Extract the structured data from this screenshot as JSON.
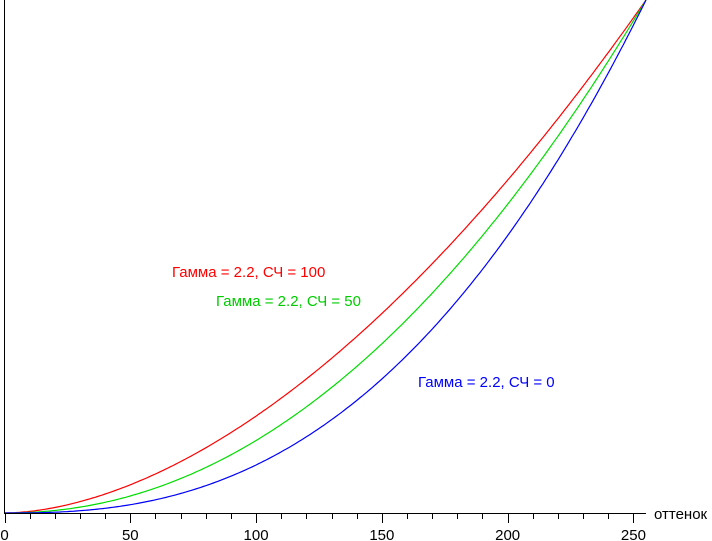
{
  "chart_data": {
    "type": "line",
    "title": "",
    "xlabel": "оттенок",
    "ylabel": "",
    "xlim": [
      0,
      255
    ],
    "ylim": [
      0,
      1
    ],
    "xticks": [
      0,
      50,
      100,
      150,
      200,
      250
    ],
    "minor_tick_step": 10,
    "grid": false,
    "series": [
      {
        "name": "Гамма = 2.2, СЧ = 100",
        "color": "#ff0000",
        "gamma_fit": 1.78,
        "samples": [
          [
            0,
            0
          ],
          [
            50,
            0.05
          ],
          [
            100,
            0.19
          ],
          [
            150,
            0.39
          ],
          [
            200,
            0.65
          ],
          [
            255,
            1
          ]
        ]
      },
      {
        "name": "Гамма = 2.2, СЧ = 50",
        "color": "#00dd00",
        "gamma_fit": 2.09,
        "samples": [
          [
            0,
            0
          ],
          [
            50,
            0.03
          ],
          [
            100,
            0.14
          ],
          [
            150,
            0.33
          ],
          [
            200,
            0.6
          ],
          [
            255,
            1
          ]
        ]
      },
      {
        "name": "Гамма = 2.2, СЧ = 0",
        "color": "#0000ff",
        "gamma_fit": 2.53,
        "samples": [
          [
            0,
            0
          ],
          [
            50,
            0.016
          ],
          [
            100,
            0.094
          ],
          [
            150,
            0.26
          ],
          [
            200,
            0.54
          ],
          [
            255,
            1
          ]
        ]
      }
    ]
  }
}
